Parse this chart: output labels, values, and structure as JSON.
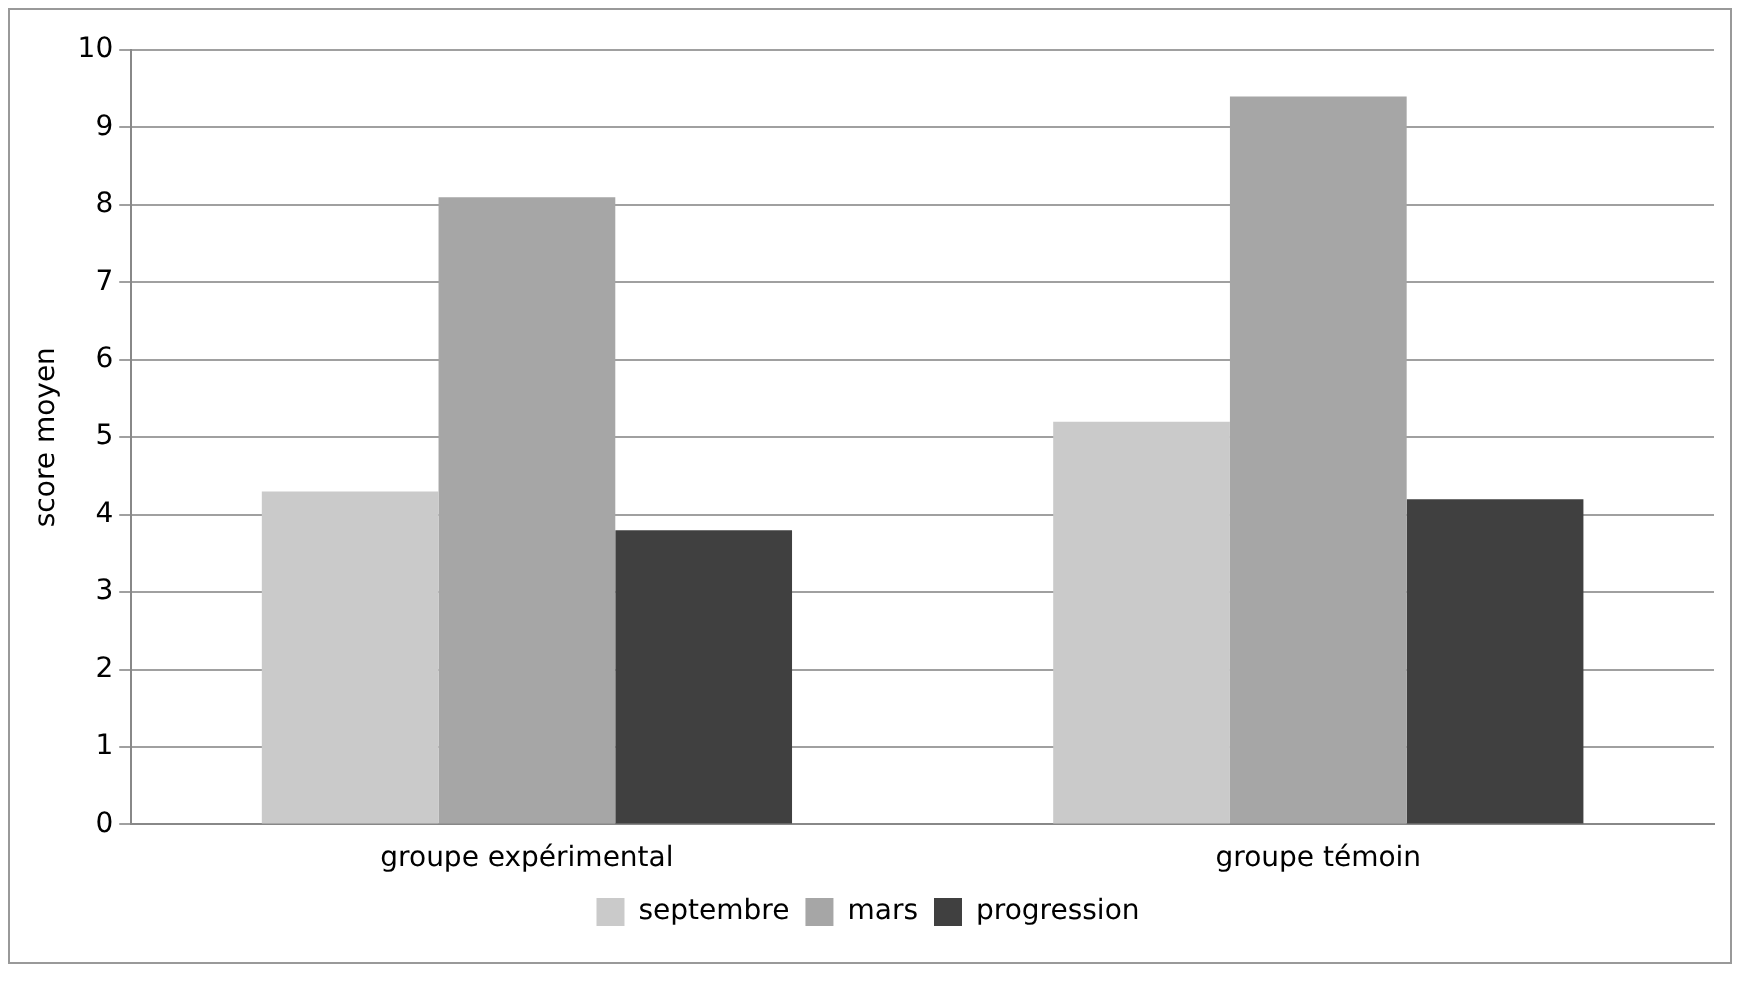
{
  "chart_data": {
    "type": "bar",
    "ylabel": "score moyen",
    "categories": [
      "groupe expérimental",
      "groupe témoin"
    ],
    "series": [
      {
        "name": "septembre",
        "color": "#cacaca",
        "values": [
          4.3,
          5.2
        ]
      },
      {
        "name": "mars",
        "color": "#a6a6a6",
        "values": [
          8.1,
          9.4
        ]
      },
      {
        "name": "progression",
        "color": "#404040",
        "values": [
          3.8,
          4.2
        ]
      }
    ],
    "ylim": [
      0,
      10
    ],
    "yticks": [
      0,
      1,
      2,
      3,
      4,
      5,
      6,
      7,
      8,
      9,
      10
    ],
    "grid": "y",
    "legend": "bottom"
  }
}
